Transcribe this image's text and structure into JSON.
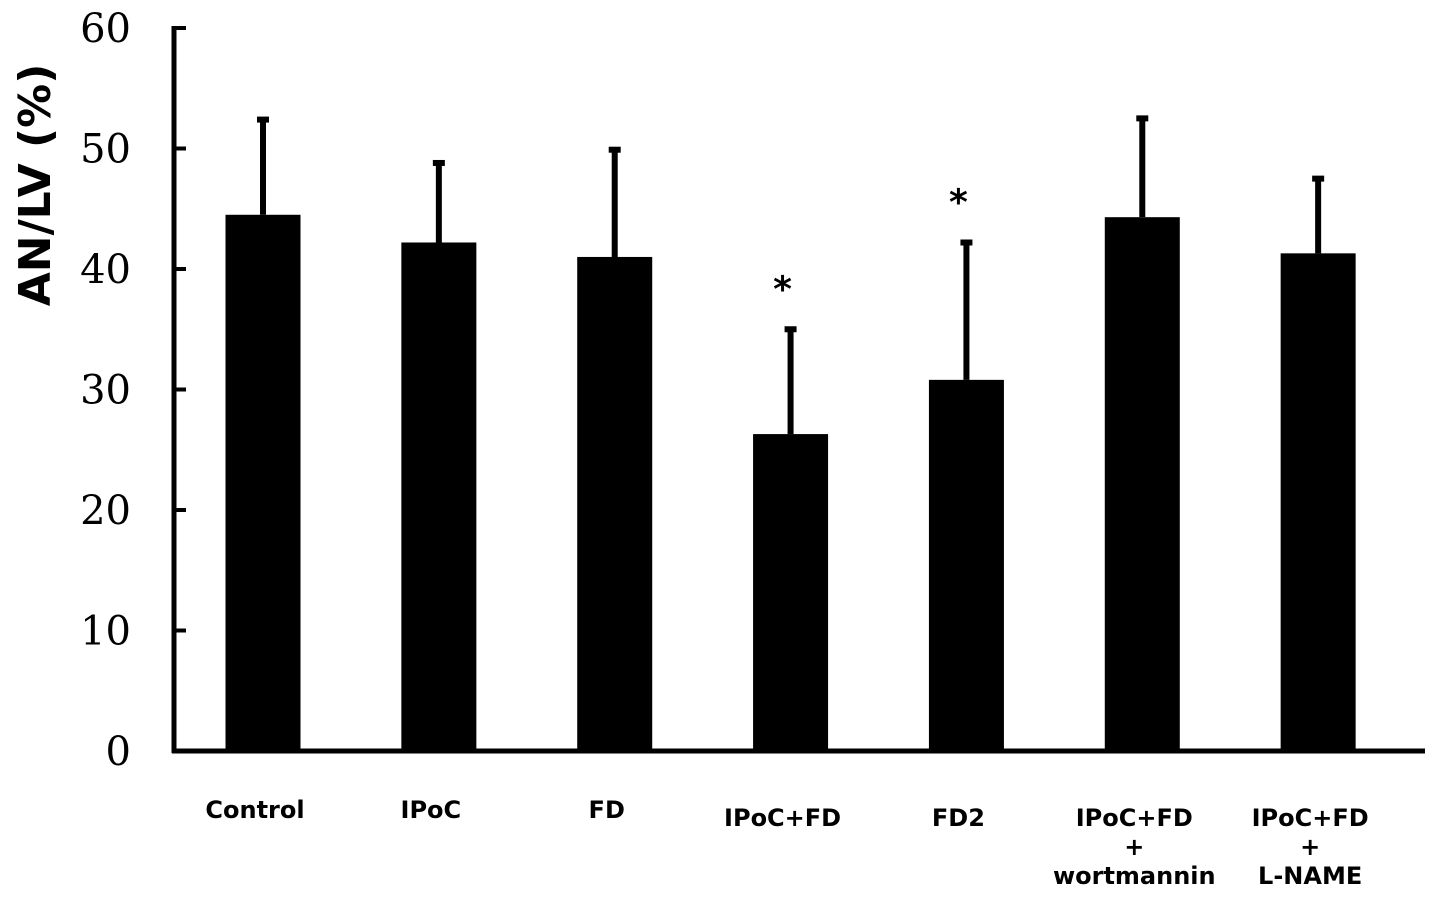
{
  "chart_data": {
    "type": "bar",
    "title": "",
    "xlabel": "",
    "ylabel": "AN/LV (%)",
    "ylim": [
      0,
      60
    ],
    "yticks": [
      0,
      10,
      20,
      30,
      40,
      50,
      60
    ],
    "grid": false,
    "legend": "none",
    "bar_color": "#000000",
    "categories": [
      [
        "Control"
      ],
      [
        "IPoC"
      ],
      [
        "FD"
      ],
      [
        "IPoC+FD"
      ],
      [
        "FD2"
      ],
      [
        "IPoC+FD",
        "+",
        "wortmannin"
      ],
      [
        "IPoC+FD",
        "+",
        "L-NAME"
      ]
    ],
    "values": [
      44.5,
      42.2,
      41.0,
      26.3,
      30.8,
      44.3,
      41.3
    ],
    "errors": [
      7.9,
      6.6,
      8.9,
      8.7,
      11.4,
      8.2,
      6.2
    ],
    "annotations": [
      "",
      "",
      "",
      "*",
      "*",
      "",
      ""
    ]
  }
}
